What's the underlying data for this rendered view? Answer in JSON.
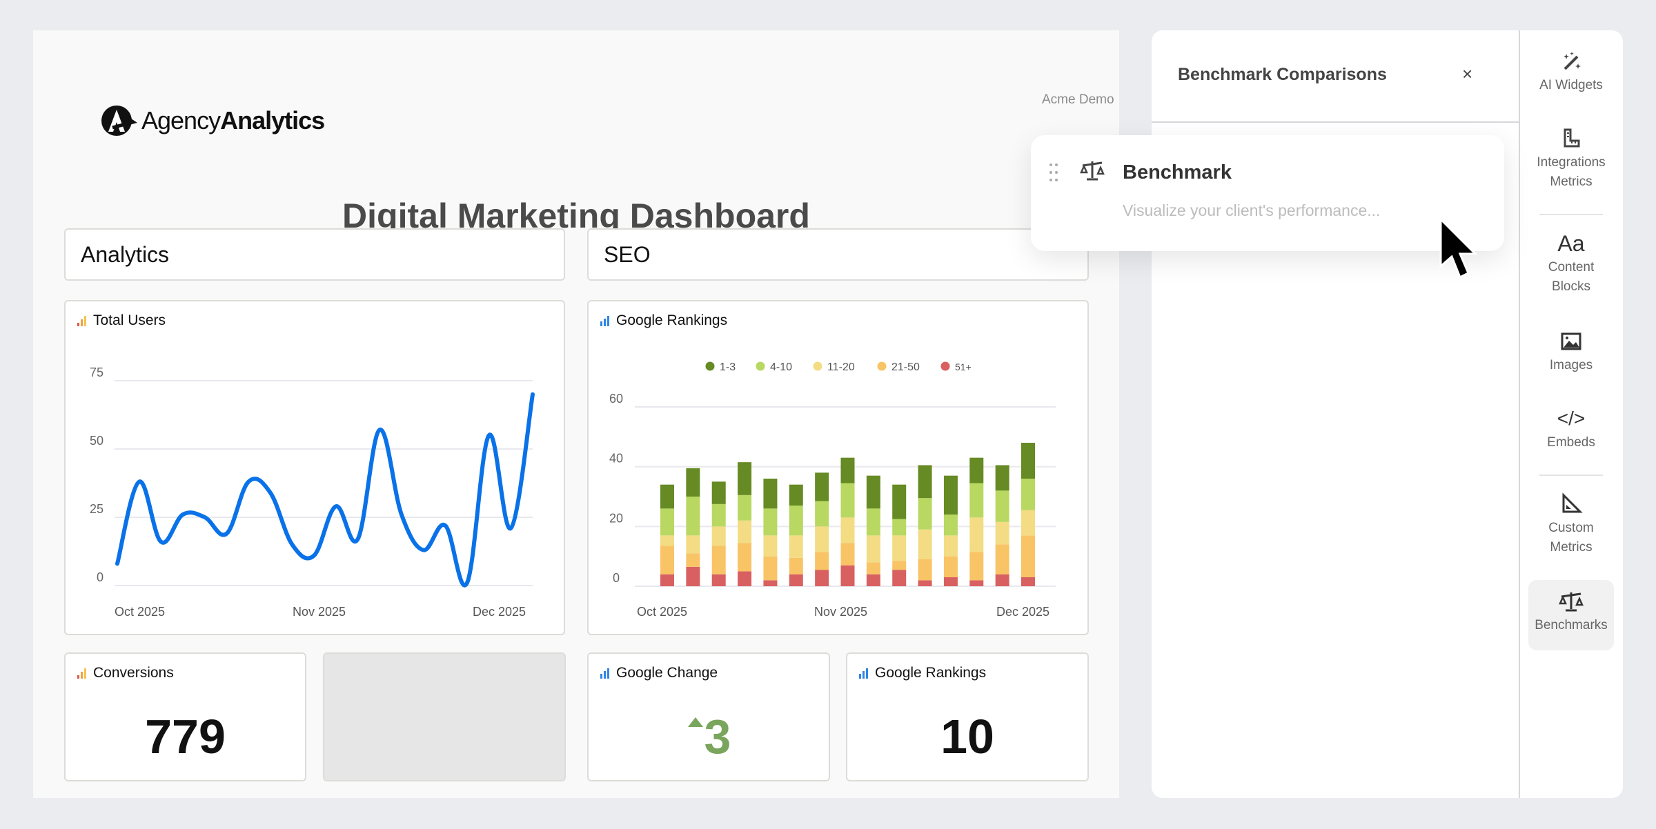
{
  "report": {
    "logo_text_light": "Agency",
    "logo_text_bold": "Analytics",
    "client": "Acme Demo",
    "title": "Digital Marketing Dashboard",
    "sections": [
      "Analytics",
      "SEO"
    ]
  },
  "widgets": {
    "total_users": {
      "title": "Total Users"
    },
    "google_rankings_chart": {
      "title": "Google Rankings"
    },
    "conversions": {
      "title": "Conversions",
      "value": "779"
    },
    "google_change": {
      "title": "Google Change",
      "value": "3",
      "trend": "up"
    },
    "google_rankings": {
      "title": "Google Rankings",
      "value": "10"
    }
  },
  "panel": {
    "title": "Benchmark Comparisons",
    "close_label": "×",
    "drag_card": {
      "title": "Benchmark",
      "description": "Visualize your client's performance..."
    }
  },
  "sidebar": {
    "items": [
      {
        "label1": "AI Widgets",
        "label2": "",
        "icon": "magic-wand-icon"
      },
      {
        "label1": "Integrations",
        "label2": "Metrics",
        "icon": "ruler-icon"
      },
      {
        "label1": "Content",
        "label2": "Blocks",
        "icon": "text-icon"
      },
      {
        "label1": "Images",
        "label2": "",
        "icon": "image-icon"
      },
      {
        "label1": "Embeds",
        "label2": "",
        "icon": "code-icon"
      },
      {
        "label1": "Custom",
        "label2": "Metrics",
        "icon": "set-square-icon"
      },
      {
        "label1": "Benchmarks",
        "label2": "",
        "icon": "scale-icon",
        "active": true
      }
    ]
  },
  "colors": {
    "line": "#0a72e8",
    "up": "#7aa55c",
    "analytics_icon": "#f0a23a",
    "seo_icon": "#2f86e6"
  },
  "chart_data": [
    {
      "type": "line",
      "title": "Total Users",
      "x_ticks": [
        "Oct 2025",
        "Nov 2025",
        "Dec 2025"
      ],
      "y_ticks": [
        "0",
        "25",
        "50",
        "75"
      ],
      "ylim": [
        0,
        75
      ],
      "grid": true,
      "series": [
        {
          "name": "Total Users",
          "color": "#0a72e8",
          "values": [
            8,
            38,
            16,
            26,
            25,
            19,
            38,
            34,
            15,
            11,
            29,
            17,
            57,
            26,
            13,
            22,
            1,
            55,
            21,
            70
          ]
        }
      ]
    },
    {
      "type": "bar",
      "stacked": true,
      "title": "Google Rankings",
      "x_ticks": [
        "Oct 2025",
        "Nov 2025",
        "Dec 2025"
      ],
      "y_ticks": [
        "0",
        "20",
        "40",
        "60"
      ],
      "ylim": [
        0,
        60
      ],
      "grid": true,
      "legend_position": "top-center",
      "series": [
        {
          "name": "51+",
          "color": "#d96060",
          "values": [
            4,
            6.5,
            4,
            5,
            2,
            4,
            5.5,
            7,
            4,
            5.5,
            2,
            3,
            2,
            4,
            3
          ]
        },
        {
          "name": "21-50",
          "color": "#f8c466",
          "values": [
            9.5,
            4.5,
            9.5,
            9.5,
            8,
            5.5,
            6,
            7.5,
            4,
            3,
            7,
            7,
            9.5,
            10,
            14
          ]
        },
        {
          "name": "11-20",
          "color": "#f3dc84",
          "values": [
            3.5,
            6,
            6.5,
            7.5,
            7,
            7.5,
            8.5,
            8.5,
            9,
            8.5,
            10,
            7,
            11.5,
            7.5,
            8.5
          ]
        },
        {
          "name": "4-10",
          "color": "#b8d862",
          "values": [
            9,
            13,
            7.5,
            8.5,
            9,
            10,
            8.5,
            11.5,
            9,
            5.5,
            10.5,
            7,
            11.5,
            10.5,
            10.5
          ]
        },
        {
          "name": "1-3",
          "color": "#668a24",
          "values": [
            8,
            9.5,
            7.5,
            11,
            10,
            7,
            9.5,
            8.5,
            11,
            11.5,
            11,
            13,
            8.5,
            8.5,
            12
          ]
        }
      ],
      "legend": [
        "1-3",
        "4-10",
        "11-20",
        "21-50",
        "51+"
      ]
    }
  ]
}
